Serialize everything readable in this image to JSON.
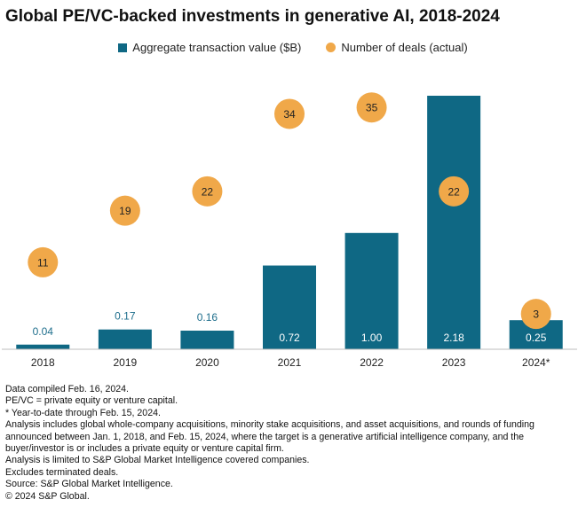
{
  "chart_data": {
    "type": "bar",
    "title": "Global PE/VC-backed investments in generative AI, 2018-2024",
    "categories": [
      "2018",
      "2019",
      "2020",
      "2021",
      "2022",
      "2023",
      "2024*"
    ],
    "series": [
      {
        "name": "Aggregate transaction value ($B)",
        "kind": "bar",
        "values": [
          0.04,
          0.17,
          0.16,
          0.72,
          1.0,
          2.18,
          0.25
        ],
        "labels": [
          "0.04",
          "0.17",
          "0.16",
          "0.72",
          "1.00",
          "2.18",
          "0.25"
        ]
      },
      {
        "name": "Number of deals (actual)",
        "kind": "dot",
        "values": [
          11,
          19,
          22,
          34,
          35,
          22,
          3
        ],
        "labels": [
          "11",
          "19",
          "22",
          "34",
          "35",
          "22",
          "3"
        ]
      }
    ],
    "xlabel": "",
    "ylabel": "",
    "grid": false,
    "legend_position": "top-center",
    "colors": {
      "bar": "#0f6884",
      "dot": "#f0a849",
      "label_on_bar": "#ffffff",
      "label_above_bar": "#1e6e8c"
    }
  },
  "notes": [
    "Data compiled Feb. 16, 2024.",
    "PE/VC = private equity or venture capital.",
    "* Year-to-date through Feb. 15, 2024.",
    "Analysis includes global whole-company acquisitions, minority stake acquisitions, and asset acquisitions, and rounds of funding announced between Jan. 1, 2018, and Feb. 15,  2024, where the target is a generative artificial intelligence company, and the buyer/investor is or includes a private equity or venture capital firm.",
    "Analysis is limited to S&P Global Market Intelligence covered companies.",
    "Excludes terminated deals.",
    "Source: S&P Global Market Intelligence.",
    "© 2024 S&P Global."
  ]
}
